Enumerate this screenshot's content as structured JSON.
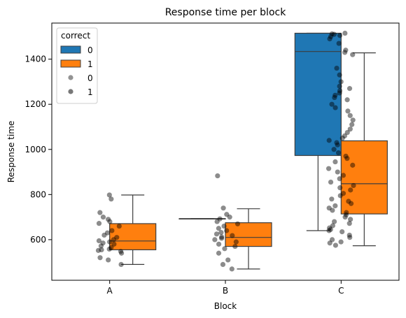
{
  "chart_data": {
    "type": "box",
    "title": "Response time per block",
    "xlabel": "Block",
    "ylabel": "Response time",
    "categories": [
      "A",
      "B",
      "C"
    ],
    "ylim": [
      420,
      1560
    ],
    "yticks": [
      600,
      800,
      1000,
      1200,
      1400
    ],
    "grid": false,
    "legend": {
      "title": "correct",
      "placement": "top-left",
      "entries": [
        {
          "kind": "box",
          "label": "0",
          "color": "#1f77b4"
        },
        {
          "kind": "box",
          "label": "1",
          "color": "#ff7f0e"
        },
        {
          "kind": "point",
          "label": "0",
          "color": "#808080"
        },
        {
          "kind": "point",
          "label": "1",
          "color": "#606060"
        }
      ]
    },
    "series": [
      {
        "hue": "0",
        "color": "#1f77b4",
        "boxes": [
          {
            "category": "B",
            "whislo": 693,
            "q1": 693,
            "med": 693,
            "q3": 693,
            "whishi": 693
          },
          {
            "category": "C",
            "whislo": 640,
            "q1": 973,
            "med": 1434,
            "q3": 1515,
            "whishi": 1515
          }
        ]
      },
      {
        "hue": "1",
        "color": "#ff7f0e",
        "boxes": [
          {
            "category": "A",
            "whislo": 490,
            "q1": 555,
            "med": 594,
            "q3": 671,
            "whishi": 798
          },
          {
            "category": "B",
            "whislo": 470,
            "q1": 570,
            "med": 610,
            "q3": 675,
            "whishi": 737
          },
          {
            "category": "C",
            "whislo": 573,
            "q1": 714,
            "med": 848,
            "q3": 1038,
            "whishi": 1428
          }
        ]
      }
    ],
    "points": {
      "A": [
        798,
        780,
        720,
        700,
        690,
        680,
        672,
        660,
        640,
        630,
        620,
        610,
        600,
        595,
        590,
        585,
        580,
        572,
        565,
        558,
        555,
        552,
        548,
        540,
        520,
        510,
        490
      ],
      "B": [
        883,
        740,
        712,
        700,
        692,
        680,
        670,
        660,
        650,
        640,
        632,
        625,
        618,
        612,
        606,
        600,
        590,
        580,
        570,
        560,
        540,
        510,
        490,
        470
      ],
      "C": [
        1515,
        1512,
        1510,
        1505,
        1500,
        1490,
        1470,
        1440,
        1430,
        1420,
        1360,
        1330,
        1300,
        1280,
        1270,
        1260,
        1250,
        1240,
        1230,
        1220,
        1200,
        1185,
        1170,
        1150,
        1130,
        1110,
        1090,
        1075,
        1060,
        1050,
        1040,
        1030,
        1020,
        1000,
        985,
        970,
        960,
        945,
        930,
        915,
        900,
        885,
        870,
        855,
        840,
        830,
        820,
        805,
        795,
        780,
        770,
        760,
        750,
        740,
        730,
        720,
        710,
        700,
        690,
        680,
        672,
        662,
        652,
        645,
        640,
        635,
        620,
        610,
        600,
        590,
        585,
        575
      ]
    }
  }
}
